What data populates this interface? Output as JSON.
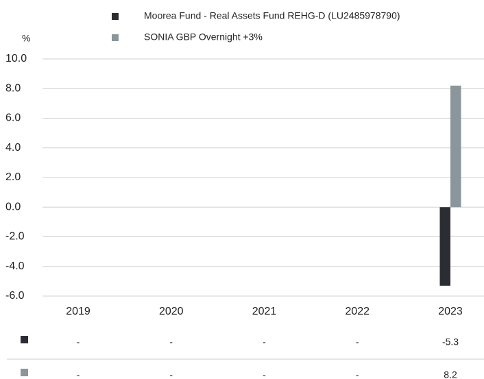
{
  "chart_data": {
    "type": "bar",
    "ylabel": "%",
    "categories": [
      "2019",
      "2020",
      "2021",
      "2022",
      "2023"
    ],
    "series": [
      {
        "name": "Moorea Fund - Real Assets Fund REHG-D (LU2485978790)",
        "color": "#2b2d33",
        "values": [
          null,
          null,
          null,
          null,
          -5.3
        ],
        "value_labels": [
          "-",
          "-",
          "-",
          "-",
          "-5.3"
        ]
      },
      {
        "name": "SONIA GBP Overnight +3%",
        "color": "#8a9699",
        "values": [
          null,
          null,
          null,
          null,
          8.2
        ],
        "value_labels": [
          "-",
          "-",
          "-",
          "-",
          "8.2"
        ]
      }
    ],
    "ylim": [
      -6,
      10
    ],
    "yticks": [
      {
        "value": 10,
        "label": "10.0"
      },
      {
        "value": 8,
        "label": "8.0"
      },
      {
        "value": 6,
        "label": "6.0"
      },
      {
        "value": 4,
        "label": "4.0"
      },
      {
        "value": 2,
        "label": "2.0"
      },
      {
        "value": 0,
        "label": "0.0"
      },
      {
        "value": -2,
        "label": "-2.0"
      },
      {
        "value": -4,
        "label": "-4.0"
      },
      {
        "value": -6,
        "label": "-6.0"
      }
    ],
    "grid": true
  }
}
